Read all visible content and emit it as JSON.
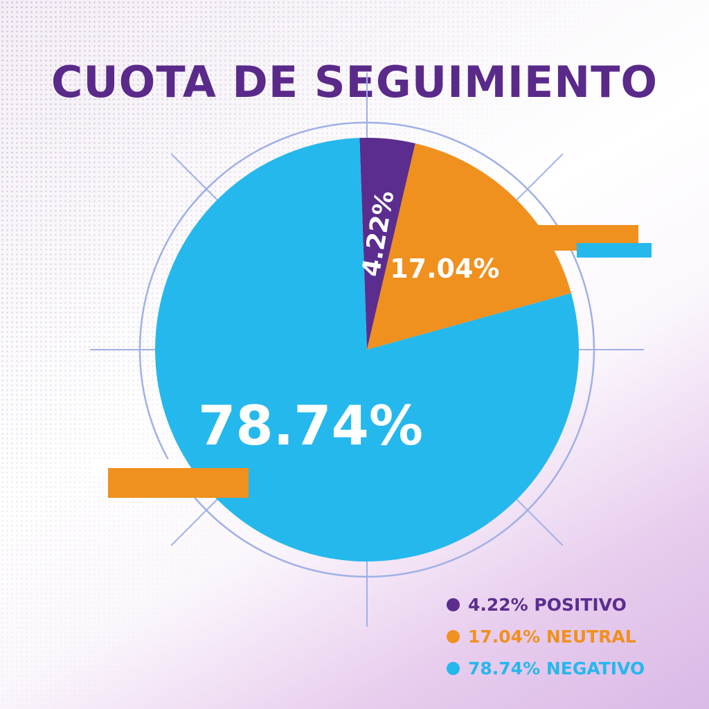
{
  "title": "CUOTA DE SEGUIMIENTO",
  "colors": {
    "title": "#5a2a8a",
    "positivo": "#5b2d8e",
    "neutral": "#f0901e",
    "negativo": "#25b8ec",
    "ring": "#9fb0e6",
    "white": "#ffffff"
  },
  "chart_data": {
    "type": "pie",
    "title": "CUOTA DE SEGUIMIENTO",
    "categories": [
      "POSITIVO",
      "NEUTRAL",
      "NEGATIVO"
    ],
    "values": [
      4.22,
      17.04,
      78.74
    ],
    "slice_labels": [
      "4.22%",
      "17.04%",
      "78.74%"
    ],
    "legend_position": "bottom-right"
  },
  "legend": [
    {
      "label": "4.22% POSITIVO",
      "color": "#5b2d8e"
    },
    {
      "label": "17.04% NEUTRAL",
      "color": "#f0901e"
    },
    {
      "label": "78.74% NEGATIVO",
      "color": "#25b8ec"
    }
  ]
}
